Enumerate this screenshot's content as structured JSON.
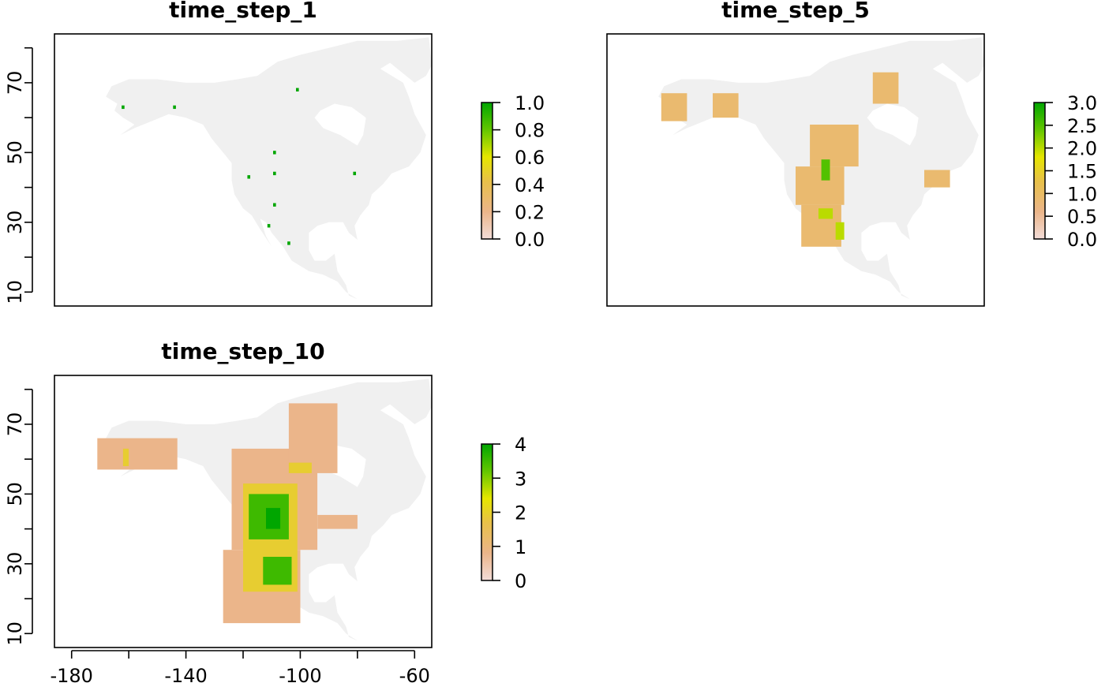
{
  "chart_data": [
    {
      "type": "heatmap",
      "title": "time_step_1",
      "ylim": [
        10,
        80
      ],
      "y_ticks": [
        "10",
        "30",
        "50",
        "70"
      ],
      "legend": {
        "labels": [
          "0.0",
          "0.2",
          "0.4",
          "0.6",
          "0.8",
          "1.0"
        ],
        "min": 0,
        "max": 1,
        "colors": [
          "#f2f2f2",
          "#ebb58a",
          "#e8c04a",
          "#e6e600",
          "#63c600",
          "#00a600"
        ]
      },
      "cells": [
        {
          "lon": -162,
          "lat": 63,
          "value": 1
        },
        {
          "lon": -144,
          "lat": 63,
          "value": 1
        },
        {
          "lon": -101,
          "lat": 68,
          "value": 1
        },
        {
          "lon": -109,
          "lat": 50,
          "value": 1
        },
        {
          "lon": -118,
          "lat": 43,
          "value": 1
        },
        {
          "lon": -109,
          "lat": 44,
          "value": 1
        },
        {
          "lon": -81,
          "lat": 44,
          "value": 1
        },
        {
          "lon": -109,
          "lat": 35,
          "value": 1
        },
        {
          "lon": -111,
          "lat": 29,
          "value": 1
        },
        {
          "lon": -104,
          "lat": 24,
          "value": 1
        }
      ]
    },
    {
      "type": "heatmap",
      "title": "time_step_5",
      "ylim": [
        10,
        80
      ],
      "y_ticks": [],
      "legend": {
        "labels": [
          "0.0",
          "0.5",
          "1.0",
          "1.5",
          "2.0",
          "2.5",
          "3.0"
        ],
        "min": 0,
        "max": 3,
        "colors": [
          "#f2f2f2",
          "#ebb58a",
          "#e8c04a",
          "#e6e600",
          "#63c600",
          "#00a600"
        ]
      },
      "patches": [
        {
          "lon": [
            -167,
            -158
          ],
          "lat": [
            59,
            67
          ],
          "value": 1
        },
        {
          "lon": [
            -149,
            -140
          ],
          "lat": [
            60,
            67
          ],
          "value": 1
        },
        {
          "lon": [
            -93,
            -84
          ],
          "lat": [
            64,
            73
          ],
          "value": 1
        },
        {
          "lon": [
            -115,
            -98
          ],
          "lat": [
            46,
            58
          ],
          "value": 1
        },
        {
          "lon": [
            -120,
            -103
          ],
          "lat": [
            35,
            46
          ],
          "value": 1
        },
        {
          "lon": [
            -118,
            -104
          ],
          "lat": [
            23,
            35
          ],
          "value": 1
        },
        {
          "lon": [
            -75,
            -66
          ],
          "lat": [
            40,
            45
          ],
          "value": 1
        },
        {
          "lon": [
            -111,
            -108
          ],
          "lat": [
            42,
            48
          ],
          "value": 2.5
        },
        {
          "lon": [
            -112,
            -107
          ],
          "lat": [
            31,
            34
          ],
          "value": 2
        },
        {
          "lon": [
            -106,
            -103
          ],
          "lat": [
            25,
            30
          ],
          "value": 2
        }
      ]
    },
    {
      "type": "heatmap",
      "title": "time_step_10",
      "ylim": [
        10,
        80
      ],
      "xlim": [
        -186,
        -54
      ],
      "y_ticks": [
        "10",
        "30",
        "50",
        "70"
      ],
      "x_ticks": [
        "-180",
        "-140",
        "-100",
        "-60"
      ],
      "legend": {
        "labels": [
          "0",
          "1",
          "2",
          "3",
          "4"
        ],
        "min": 0,
        "max": 4,
        "colors": [
          "#f2f2f2",
          "#ebb58a",
          "#e8c04a",
          "#e6e600",
          "#63c600",
          "#00a600"
        ]
      },
      "patches": [
        {
          "lon": [
            -171,
            -143
          ],
          "lat": [
            57,
            66
          ],
          "value": 1
        },
        {
          "lon": [
            -124,
            -94
          ],
          "lat": [
            34,
            63
          ],
          "value": 1
        },
        {
          "lon": [
            -104,
            -87
          ],
          "lat": [
            56,
            76
          ],
          "value": 1
        },
        {
          "lon": [
            -94,
            -80
          ],
          "lat": [
            40,
            44
          ],
          "value": 1
        },
        {
          "lon": [
            -127,
            -100
          ],
          "lat": [
            13,
            34
          ],
          "value": 1
        },
        {
          "lon": [
            -120,
            -101
          ],
          "lat": [
            22,
            53
          ],
          "value": 2
        },
        {
          "lon": [
            -104,
            -96
          ],
          "lat": [
            56,
            59
          ],
          "value": 2
        },
        {
          "lon": [
            -162,
            -160
          ],
          "lat": [
            58,
            63
          ],
          "value": 2
        },
        {
          "lon": [
            -118,
            -104
          ],
          "lat": [
            37,
            50
          ],
          "value": 3.5
        },
        {
          "lon": [
            -113,
            -103
          ],
          "lat": [
            24,
            32
          ],
          "value": 3.5
        },
        {
          "lon": [
            -112,
            -107
          ],
          "lat": [
            40,
            46
          ],
          "value": 4
        }
      ]
    }
  ]
}
